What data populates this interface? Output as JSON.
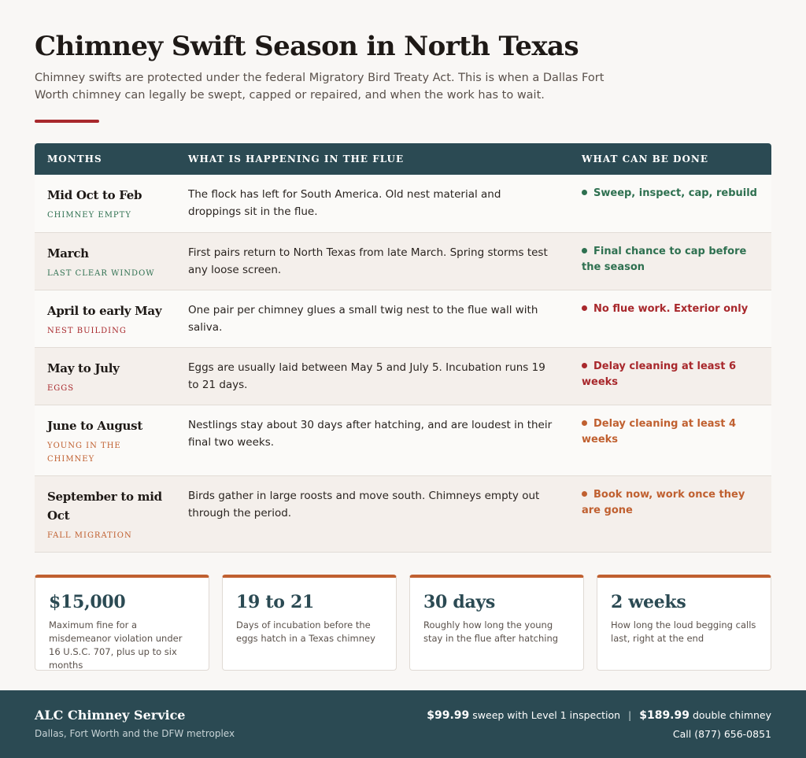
{
  "header": {
    "title": "Chimney Swift Season in North Texas",
    "intro": "Chimney swifts are protected under the federal Migratory Bird Treaty Act. This is when a Dallas Fort Worth chimney can legally be swept, capped or repaired, and when the work has to wait."
  },
  "table": {
    "headers": [
      "MONTHS",
      "WHAT IS HAPPENING IN THE FLUE",
      "WHAT CAN BE DONE"
    ],
    "rows": [
      {
        "months": "Mid Oct to Feb",
        "phase": "CHIMNEY EMPTY",
        "description": "The flock has left for South America. Old nest material and droppings sit in the flue.",
        "action": "Sweep, inspect, cap, rebuild",
        "color": "#2e7050"
      },
      {
        "months": "March",
        "phase": "LAST CLEAR WINDOW",
        "description": "First pairs return to North Texas from late March. Spring storms test any loose screen.",
        "action": "Final chance to cap before the season",
        "color": "#2e7050"
      },
      {
        "months": "April to early May",
        "phase": "NEST BUILDING",
        "description": "One pair per chimney glues a small twig nest to the flue wall with saliva.",
        "action": "No flue work. Exterior only",
        "color": "#a8282c"
      },
      {
        "months": "May to July",
        "phase": "EGGS",
        "description": "Eggs are usually laid between May 5 and July 5. Incubation runs 19 to 21 days.",
        "action": "Delay cleaning at least 6 weeks",
        "color": "#a8282c"
      },
      {
        "months": "June to August",
        "phase": "YOUNG IN THE CHIMNEY",
        "description": "Nestlings stay about 30 days after hatching, and are loudest in their final two weeks.",
        "action": "Delay cleaning at least 4 weeks",
        "color": "#c06030"
      },
      {
        "months": "September to mid Oct",
        "phase": "FALL MIGRATION",
        "description": "Birds gather in large roosts and move south. Chimneys empty out through the period.",
        "action": "Book now, work once they are gone",
        "color": "#c06030"
      }
    ]
  },
  "stats": [
    {
      "value": "$15,000",
      "label": "Maximum fine for a misdemeanor violation under 16 U.S.C. 707, plus up to six months"
    },
    {
      "value": "19 to 21",
      "label": "Days of incubation before the eggs hatch in a Texas chimney"
    },
    {
      "value": "30 days",
      "label": "Roughly how long the young stay in the flue after hatching"
    },
    {
      "value": "2 weeks",
      "label": "How long the loud begging calls last, right at the end"
    }
  ],
  "footer": {
    "brand": "ALC Chimney Service",
    "region": "Dallas, Fort Worth and the DFW metroplex",
    "price1": "$99.99",
    "price1_text": "sweep with Level 1 inspection",
    "separator": "|",
    "price2": "$189.99",
    "price2_text": "double chimney",
    "phone": "Call (877) 656-0851"
  }
}
